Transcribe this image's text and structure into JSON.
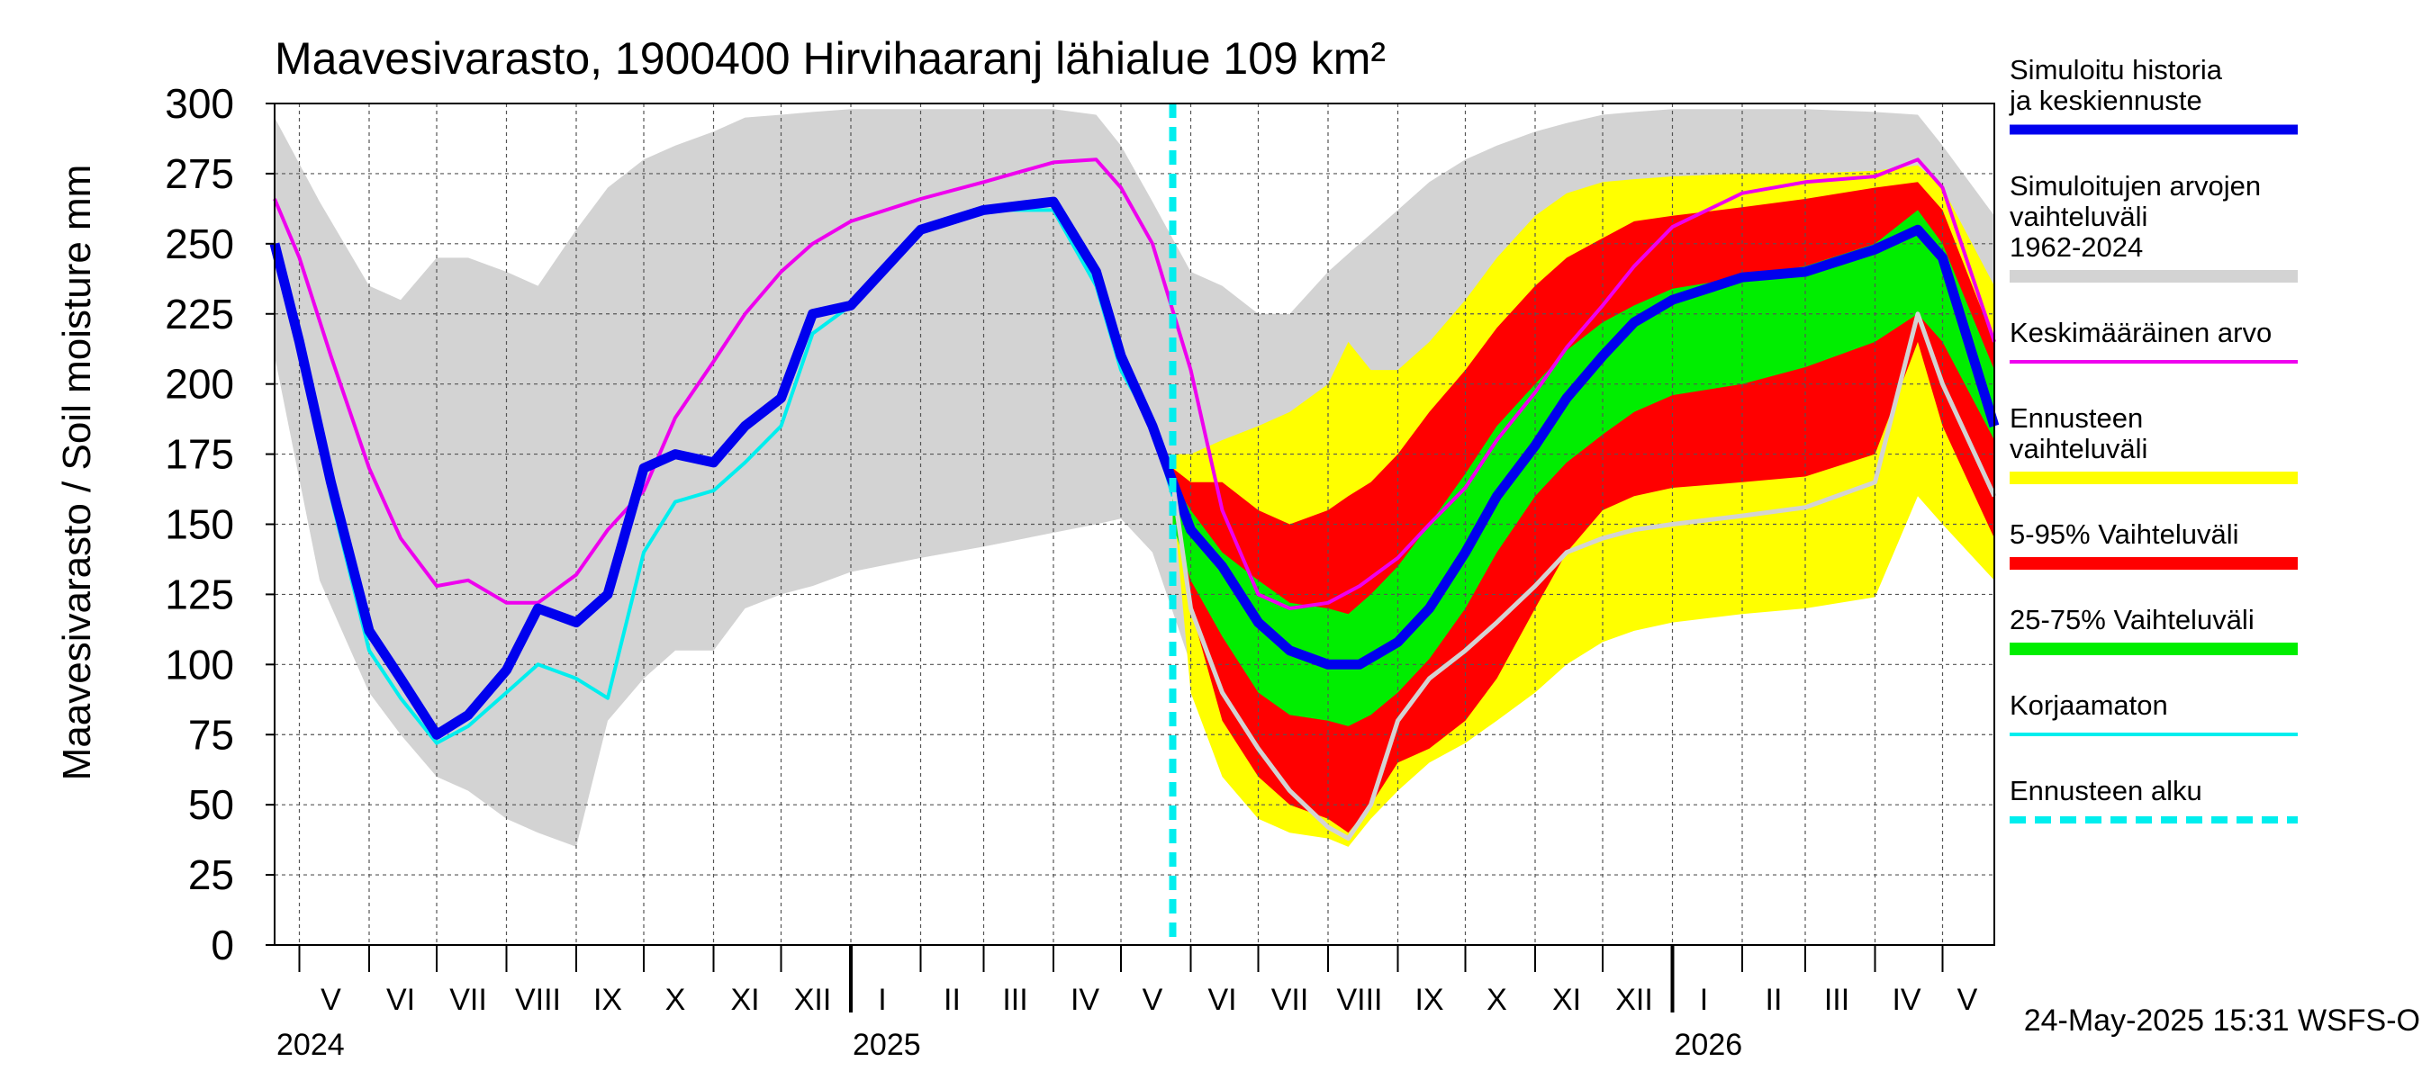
{
  "chart_data": {
    "type": "area",
    "title": "Maavesivarasto, 1900400 Hirvihaaranj lähialue 109 km²",
    "ylabel": "Maavesivarasto / Soil moisture   mm",
    "ylim": [
      0,
      300
    ],
    "yticks": [
      0,
      25,
      50,
      75,
      100,
      125,
      150,
      175,
      200,
      225,
      250,
      275,
      300
    ],
    "xlim": [
      "2024-04-20",
      "2026-05-24"
    ],
    "grid": true,
    "legend_position": "right",
    "forecast_start": "2025-05-24",
    "footer": "24-May-2025 15:31 WSFS-O",
    "month_labels": [
      {
        "label": "V",
        "date": "2024-05-15"
      },
      {
        "label": "VI",
        "date": "2024-06-15"
      },
      {
        "label": "VII",
        "date": "2024-07-15"
      },
      {
        "label": "VIII",
        "date": "2024-08-15"
      },
      {
        "label": "IX",
        "date": "2024-09-15"
      },
      {
        "label": "X",
        "date": "2024-10-15"
      },
      {
        "label": "XI",
        "date": "2024-11-15"
      },
      {
        "label": "XII",
        "date": "2024-12-15"
      },
      {
        "label": "I",
        "date": "2025-01-15"
      },
      {
        "label": "II",
        "date": "2025-02-15"
      },
      {
        "label": "III",
        "date": "2025-03-15"
      },
      {
        "label": "IV",
        "date": "2025-04-15"
      },
      {
        "label": "V",
        "date": "2025-05-15"
      },
      {
        "label": "VI",
        "date": "2025-06-15"
      },
      {
        "label": "VII",
        "date": "2025-07-15"
      },
      {
        "label": "VIII",
        "date": "2025-08-15"
      },
      {
        "label": "IX",
        "date": "2025-09-15"
      },
      {
        "label": "X",
        "date": "2025-10-15"
      },
      {
        "label": "XI",
        "date": "2025-11-15"
      },
      {
        "label": "XII",
        "date": "2025-12-15"
      },
      {
        "label": "I",
        "date": "2026-01-15"
      },
      {
        "label": "II",
        "date": "2026-02-15"
      },
      {
        "label": "III",
        "date": "2026-03-15"
      },
      {
        "label": "IV",
        "date": "2026-04-15"
      },
      {
        "label": "V",
        "date": "2026-05-12"
      }
    ],
    "year_labels": [
      {
        "label": "2024",
        "date": "2024-04-20"
      },
      {
        "label": "2025",
        "date": "2025-01-01"
      },
      {
        "label": "2026",
        "date": "2026-01-01"
      }
    ],
    "legend": [
      {
        "label": "Simuloitu historia ja keskiennuste",
        "color": "#0000ee",
        "style": "thick-line"
      },
      {
        "label": "Simuloitujen arvojen vaihteluväli 1962-2024",
        "color": "#d3d3d3",
        "style": "band"
      },
      {
        "label": "Keskimääräinen arvo",
        "color": "#ee00ee",
        "style": "line"
      },
      {
        "label": "Ennusteen vaihteluväli",
        "color": "#ffff00",
        "style": "band"
      },
      {
        "label": "5-95% Vaihteluväli",
        "color": "#ff0000",
        "style": "band"
      },
      {
        "label": "25-75% Vaihteluväli",
        "color": "#00ee00",
        "style": "band"
      },
      {
        "label": "Korjaamaton",
        "color": "#00eeee",
        "style": "line"
      },
      {
        "label": "Ennusteen alku",
        "color": "#00eeee",
        "style": "dashed"
      }
    ],
    "series": [
      {
        "name": "Simuloitujen arvojen vaihteluväli 1962-2024",
        "kind": "band",
        "color": "#d3d3d3",
        "x": [
          "2024-04-20",
          "2024-05-10",
          "2024-06-01",
          "2024-06-15",
          "2024-07-01",
          "2024-07-15",
          "2024-08-01",
          "2024-08-15",
          "2024-09-01",
          "2024-09-15",
          "2024-10-01",
          "2024-10-15",
          "2024-11-01",
          "2024-11-15",
          "2024-12-01",
          "2024-12-15",
          "2025-01-01",
          "2025-02-01",
          "2025-03-01",
          "2025-04-01",
          "2025-04-20",
          "2025-05-01",
          "2025-05-15",
          "2025-06-01",
          "2025-06-15",
          "2025-07-01",
          "2025-07-15",
          "2025-08-01",
          "2025-08-15",
          "2025-09-01",
          "2025-09-15",
          "2025-10-01",
          "2025-10-15",
          "2025-11-01",
          "2025-11-15",
          "2025-12-01",
          "2025-12-15",
          "2026-01-01",
          "2026-02-01",
          "2026-03-01",
          "2026-04-01",
          "2026-04-20",
          "2026-05-01",
          "2026-05-24"
        ],
        "low": [
          210,
          130,
          90,
          75,
          60,
          55,
          45,
          40,
          35,
          80,
          95,
          105,
          105,
          120,
          125,
          128,
          133,
          138,
          142,
          147,
          150,
          152,
          140,
          100,
          85,
          75,
          70,
          80,
          85,
          100,
          110,
          120,
          127,
          132,
          135,
          138,
          140,
          143,
          148,
          152,
          157,
          160,
          155,
          150
        ],
        "high": [
          295,
          265,
          235,
          230,
          245,
          245,
          240,
          235,
          255,
          270,
          280,
          285,
          290,
          295,
          296,
          297,
          298,
          298,
          298,
          298,
          296,
          285,
          265,
          240,
          235,
          225,
          225,
          240,
          250,
          262,
          272,
          280,
          285,
          290,
          293,
          296,
          297,
          298,
          298,
          298,
          297,
          296,
          285,
          260
        ]
      },
      {
        "name": "Ennusteen vaihteluväli",
        "kind": "band",
        "color": "#ffff00",
        "x": [
          "2025-05-24",
          "2025-06-01",
          "2025-06-15",
          "2025-07-01",
          "2025-07-15",
          "2025-08-01",
          "2025-08-10",
          "2025-08-20",
          "2025-09-01",
          "2025-09-15",
          "2025-10-01",
          "2025-10-15",
          "2025-11-01",
          "2025-11-15",
          "2025-12-01",
          "2025-12-15",
          "2026-01-01",
          "2026-02-01",
          "2026-03-01",
          "2026-04-01",
          "2026-04-20",
          "2026-05-01",
          "2026-05-24"
        ],
        "low": [
          160,
          90,
          60,
          45,
          40,
          38,
          35,
          45,
          55,
          65,
          72,
          80,
          90,
          100,
          108,
          112,
          115,
          118,
          120,
          124,
          160,
          150,
          130
        ],
        "high": [
          175,
          175,
          180,
          185,
          190,
          200,
          215,
          205,
          205,
          215,
          230,
          245,
          260,
          268,
          272,
          273,
          274,
          275,
          275,
          276,
          278,
          270,
          235
        ]
      },
      {
        "name": "5-95% Vaihteluväli",
        "kind": "band",
        "color": "#ff0000",
        "x": [
          "2025-05-24",
          "2025-06-01",
          "2025-06-15",
          "2025-07-01",
          "2025-07-15",
          "2025-08-01",
          "2025-08-10",
          "2025-08-20",
          "2025-09-01",
          "2025-09-15",
          "2025-10-01",
          "2025-10-15",
          "2025-11-01",
          "2025-11-15",
          "2025-12-01",
          "2025-12-15",
          "2026-01-01",
          "2026-02-01",
          "2026-03-01",
          "2026-04-01",
          "2026-04-20",
          "2026-05-01",
          "2026-05-24"
        ],
        "low": [
          170,
          120,
          80,
          60,
          50,
          45,
          40,
          50,
          65,
          70,
          80,
          95,
          120,
          140,
          155,
          160,
          163,
          165,
          167,
          175,
          215,
          185,
          145
        ],
        "high": [
          170,
          165,
          165,
          155,
          150,
          155,
          160,
          165,
          175,
          190,
          205,
          220,
          235,
          245,
          252,
          258,
          260,
          263,
          266,
          270,
          272,
          262,
          215
        ]
      },
      {
        "name": "25-75% Vaihteluväli",
        "kind": "band",
        "color": "#00ee00",
        "x": [
          "2025-05-24",
          "2025-06-01",
          "2025-06-15",
          "2025-07-01",
          "2025-07-15",
          "2025-08-01",
          "2025-08-10",
          "2025-08-20",
          "2025-09-01",
          "2025-09-15",
          "2025-10-01",
          "2025-10-15",
          "2025-11-01",
          "2025-11-15",
          "2025-12-01",
          "2025-12-15",
          "2026-01-01",
          "2026-02-01",
          "2026-03-01",
          "2026-04-01",
          "2026-04-20",
          "2026-05-01",
          "2026-05-24"
        ],
        "low": [
          150,
          130,
          110,
          90,
          82,
          80,
          78,
          82,
          90,
          102,
          120,
          140,
          160,
          172,
          182,
          190,
          196,
          200,
          206,
          215,
          225,
          215,
          180
        ],
        "high": [
          165,
          155,
          140,
          130,
          122,
          120,
          118,
          125,
          135,
          150,
          168,
          185,
          200,
          212,
          222,
          228,
          234,
          238,
          242,
          250,
          262,
          250,
          205
        ]
      },
      {
        "name": "Keskimääräinen arvo",
        "kind": "line",
        "color": "#ee00ee",
        "x": [
          "2024-04-20",
          "2024-05-01",
          "2024-05-15",
          "2024-06-01",
          "2024-06-15",
          "2024-07-01",
          "2024-07-15",
          "2024-08-01",
          "2024-08-15",
          "2024-09-01",
          "2024-09-15",
          "2024-10-01",
          "2024-10-15",
          "2024-11-01",
          "2024-11-15",
          "2024-12-01",
          "2024-12-15",
          "2025-01-01",
          "2025-02-01",
          "2025-03-01",
          "2025-04-01",
          "2025-04-20",
          "2025-05-01",
          "2025-05-15",
          "2025-06-01",
          "2025-06-15",
          "2025-07-01",
          "2025-07-15",
          "2025-08-01",
          "2025-08-15",
          "2025-09-01",
          "2025-09-15",
          "2025-10-01",
          "2025-10-15",
          "2025-11-01",
          "2025-11-15",
          "2025-12-01",
          "2025-12-15",
          "2026-01-01",
          "2026-02-01",
          "2026-03-01",
          "2026-04-01",
          "2026-04-20",
          "2026-05-01",
          "2026-05-24"
        ],
        "y": [
          266,
          245,
          210,
          170,
          145,
          128,
          130,
          122,
          122,
          132,
          148,
          162,
          188,
          208,
          225,
          240,
          250,
          258,
          266,
          272,
          279,
          280,
          270,
          250,
          205,
          155,
          125,
          120,
          122,
          128,
          138,
          150,
          163,
          180,
          197,
          213,
          228,
          242,
          256,
          268,
          272,
          274,
          280,
          270,
          215
        ]
      },
      {
        "name": "Korjaamaton",
        "kind": "line",
        "color": "#00eeee",
        "x": [
          "2024-04-20",
          "2024-05-01",
          "2024-05-15",
          "2024-06-01",
          "2024-06-15",
          "2024-07-01",
          "2024-07-15",
          "2024-08-01",
          "2024-08-15",
          "2024-09-01",
          "2024-09-15",
          "2024-10-01",
          "2024-10-15",
          "2024-11-01",
          "2024-11-15",
          "2024-12-01",
          "2024-12-15",
          "2025-01-01",
          "2025-02-01",
          "2025-03-01",
          "2025-04-01",
          "2025-04-20",
          "2025-05-01",
          "2025-05-15",
          "2025-05-24"
        ],
        "y": [
          250,
          215,
          160,
          105,
          88,
          72,
          78,
          90,
          100,
          95,
          88,
          140,
          158,
          162,
          172,
          185,
          218,
          228,
          255,
          262,
          262,
          235,
          205,
          185,
          160
        ]
      },
      {
        "name": "Simuloitu historia ja keskiennuste",
        "kind": "line",
        "color": "#0000ee",
        "x": [
          "2024-04-20",
          "2024-05-01",
          "2024-05-15",
          "2024-06-01",
          "2024-06-15",
          "2024-07-01",
          "2024-07-15",
          "2024-08-01",
          "2024-08-15",
          "2024-09-01",
          "2024-09-15",
          "2024-10-01",
          "2024-10-15",
          "2024-11-01",
          "2024-11-15",
          "2024-12-01",
          "2024-12-15",
          "2025-01-01",
          "2025-02-01",
          "2025-03-01",
          "2025-04-01",
          "2025-04-20",
          "2025-05-01",
          "2025-05-15",
          "2025-05-24",
          "2025-06-01",
          "2025-06-15",
          "2025-07-01",
          "2025-07-15",
          "2025-08-01",
          "2025-08-15",
          "2025-09-01",
          "2025-09-15",
          "2025-10-01",
          "2025-10-15",
          "2025-11-01",
          "2025-11-15",
          "2025-12-01",
          "2025-12-15",
          "2026-01-01",
          "2026-02-01",
          "2026-03-01",
          "2026-04-01",
          "2026-04-20",
          "2026-05-01",
          "2026-05-24"
        ],
        "y": [
          250,
          215,
          165,
          112,
          95,
          75,
          82,
          98,
          120,
          115,
          125,
          170,
          175,
          172,
          185,
          195,
          225,
          228,
          255,
          262,
          265,
          240,
          210,
          185,
          165,
          148,
          135,
          115,
          105,
          100,
          100,
          108,
          120,
          140,
          160,
          178,
          195,
          210,
          222,
          230,
          238,
          240,
          248,
          255,
          245,
          185
        ]
      },
      {
        "name": "Korjaamaton forecast",
        "kind": "line",
        "color": "#d3d3d3",
        "x": [
          "2025-05-24",
          "2025-06-01",
          "2025-06-15",
          "2025-07-01",
          "2025-07-15",
          "2025-08-01",
          "2025-08-10",
          "2025-08-20",
          "2025-09-01",
          "2025-09-15",
          "2025-10-01",
          "2025-10-15",
          "2025-11-01",
          "2025-11-15",
          "2025-12-01",
          "2025-12-15",
          "2026-01-01",
          "2026-02-01",
          "2026-03-01",
          "2026-04-01",
          "2026-04-20",
          "2026-05-01",
          "2026-05-24"
        ],
        "y": [
          165,
          120,
          90,
          70,
          55,
          42,
          38,
          50,
          80,
          95,
          105,
          115,
          128,
          140,
          145,
          148,
          150,
          153,
          156,
          165,
          225,
          200,
          160
        ]
      }
    ]
  }
}
